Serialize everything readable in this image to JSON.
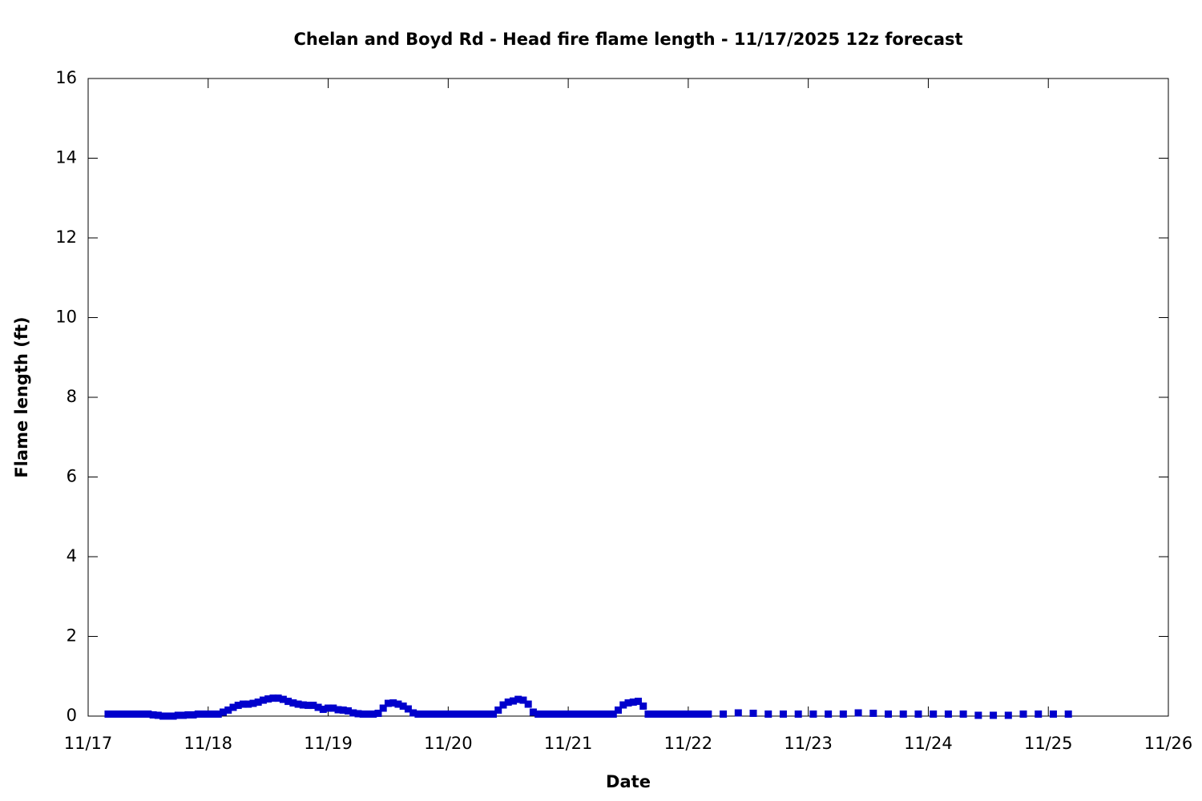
{
  "chart_data": {
    "type": "scatter",
    "title": "Chelan and Boyd Rd - Head fire flame length - 11/17/2025 12z forecast",
    "x_label": "Date",
    "y_label": "Flame length (ft)",
    "xlim": [
      0,
      216
    ],
    "xticks": [
      {
        "value": 0,
        "label": "11/17"
      },
      {
        "value": 24,
        "label": "11/18"
      },
      {
        "value": 48,
        "label": "11/19"
      },
      {
        "value": 72,
        "label": "11/20"
      },
      {
        "value": 96,
        "label": "11/21"
      },
      {
        "value": 120,
        "label": "11/22"
      },
      {
        "value": 144,
        "label": "11/23"
      },
      {
        "value": 168,
        "label": "11/24"
      },
      {
        "value": 192,
        "label": "11/25"
      },
      {
        "value": 216,
        "label": "11/26"
      }
    ],
    "ylim": [
      0,
      16
    ],
    "yticks": [
      0,
      2,
      4,
      6,
      8,
      10,
      12,
      14,
      16
    ],
    "grid": false,
    "color": "#0000cc",
    "x": [
      4,
      5,
      6,
      7,
      8,
      9,
      10,
      11,
      12,
      13,
      14,
      15,
      16,
      17,
      18,
      19,
      20,
      21,
      22,
      23,
      24,
      25,
      26,
      27,
      28,
      29,
      30,
      31,
      32,
      33,
      34,
      35,
      36,
      37,
      38,
      39,
      40,
      41,
      42,
      43,
      44,
      45,
      46,
      47,
      48,
      49,
      50,
      51,
      52,
      53,
      54,
      55,
      56,
      57,
      58,
      59,
      60,
      61,
      62,
      63,
      64,
      65,
      66,
      67,
      68,
      69,
      70,
      71,
      72,
      73,
      74,
      75,
      76,
      77,
      78,
      79,
      80,
      81,
      82,
      83,
      84,
      85,
      86,
      87,
      88,
      89,
      90,
      91,
      92,
      93,
      94,
      95,
      96,
      97,
      98,
      99,
      100,
      101,
      102,
      103,
      104,
      105,
      106,
      107,
      108,
      109,
      110,
      111,
      112,
      113,
      114,
      115,
      116,
      117,
      118,
      119,
      120,
      121,
      122,
      123,
      124,
      127,
      130,
      133,
      136,
      139,
      142,
      145,
      148,
      151,
      154,
      157,
      160,
      163,
      166,
      169,
      172,
      175,
      178,
      181,
      184,
      187,
      190,
      193,
      196
    ],
    "values": [
      0.05,
      0.05,
      0.05,
      0.05,
      0.05,
      0.05,
      0.05,
      0.05,
      0.05,
      0.03,
      0.02,
      0,
      0,
      0,
      0.02,
      0.02,
      0.03,
      0.03,
      0.05,
      0.05,
      0.05,
      0.05,
      0.05,
      0.1,
      0.15,
      0.22,
      0.27,
      0.3,
      0.3,
      0.32,
      0.35,
      0.4,
      0.43,
      0.45,
      0.45,
      0.42,
      0.37,
      0.33,
      0.3,
      0.28,
      0.27,
      0.27,
      0.22,
      0.17,
      0.2,
      0.2,
      0.16,
      0.15,
      0.13,
      0.08,
      0.06,
      0.05,
      0.05,
      0.05,
      0.07,
      0.2,
      0.32,
      0.33,
      0.3,
      0.25,
      0.18,
      0.08,
      0.05,
      0.05,
      0.05,
      0.05,
      0.05,
      0.05,
      0.05,
      0.05,
      0.05,
      0.05,
      0.05,
      0.05,
      0.05,
      0.05,
      0.05,
      0.05,
      0.15,
      0.28,
      0.35,
      0.38,
      0.42,
      0.4,
      0.3,
      0.1,
      0.05,
      0.05,
      0.05,
      0.05,
      0.05,
      0.05,
      0.05,
      0.05,
      0.05,
      0.05,
      0.05,
      0.05,
      0.05,
      0.05,
      0.05,
      0.05,
      0.15,
      0.28,
      0.33,
      0.35,
      0.37,
      0.25,
      0.05,
      0.05,
      0.05,
      0.05,
      0.05,
      0.05,
      0.05,
      0.05,
      0.05,
      0.05,
      0.05,
      0.05,
      0.05,
      0.05,
      0.08,
      0.07,
      0.05,
      0.05,
      0.05,
      0.05,
      0.05,
      0.05,
      0.08,
      0.07,
      0.05,
      0.05,
      0.05,
      0.05,
      0.05,
      0.05,
      0.02,
      0.02,
      0.02,
      0.05,
      0.05,
      0.05,
      0.05
    ]
  }
}
